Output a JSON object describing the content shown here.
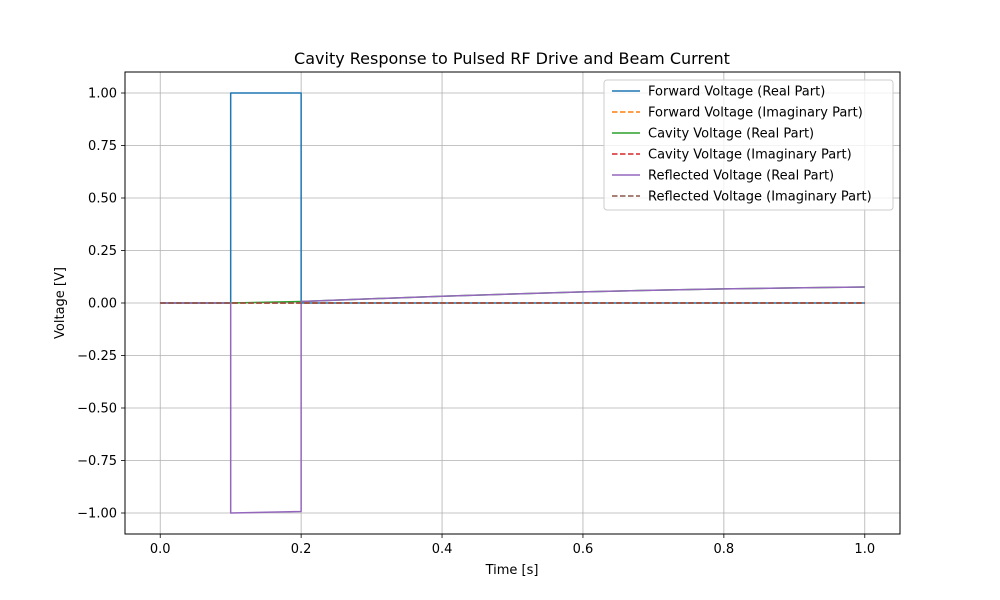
{
  "chart_data": {
    "type": "line",
    "title": "Cavity Response to Pulsed RF Drive and Beam Current",
    "xlabel": "Time [s]",
    "ylabel": "Voltage [V]",
    "xlim": [
      -0.05,
      1.05
    ],
    "ylim": [
      -1.1,
      1.1
    ],
    "xticks": [
      0.0,
      0.2,
      0.4,
      0.6,
      0.8,
      1.0
    ],
    "xtick_labels": [
      "0.0",
      "0.2",
      "0.4",
      "0.6",
      "0.8",
      "1.0"
    ],
    "yticks": [
      1.0,
      0.75,
      0.5,
      0.25,
      0.0,
      -0.25,
      -0.5,
      -0.75,
      -1.0
    ],
    "ytick_labels": [
      "1.00",
      "0.75",
      "0.50",
      "0.25",
      "0.00",
      "−0.25",
      "−0.50",
      "−0.75",
      "−1.00"
    ],
    "grid": true,
    "legend_position": "top-right",
    "series": [
      {
        "name": "Forward Voltage (Real Part)",
        "color": "#1f77b4",
        "dash": "solid",
        "x": [
          0.0,
          0.1,
          0.1,
          0.2,
          0.2,
          1.0
        ],
        "y": [
          0.0,
          0.0,
          1.0,
          1.0,
          0.0,
          0.0
        ]
      },
      {
        "name": "Forward Voltage (Imaginary Part)",
        "color": "#ff7f0e",
        "dash": "dashed",
        "x": [
          0.0,
          1.0
        ],
        "y": [
          0.0,
          0.0
        ]
      },
      {
        "name": "Cavity Voltage (Real Part)",
        "color": "#2ca02c",
        "dash": "solid",
        "x": [
          0.0,
          0.1,
          0.2,
          0.3,
          0.4,
          0.5,
          0.6,
          0.7,
          0.8,
          0.9,
          1.0
        ],
        "y": [
          0.0,
          0.0,
          0.007,
          0.02,
          0.032,
          0.043,
          0.053,
          0.061,
          0.067,
          0.072,
          0.076
        ]
      },
      {
        "name": "Cavity Voltage (Imaginary Part)",
        "color": "#d62728",
        "dash": "dashed",
        "x": [
          0.0,
          1.0
        ],
        "y": [
          0.0,
          0.0
        ]
      },
      {
        "name": "Reflected Voltage (Real Part)",
        "color": "#9467bd",
        "dash": "solid",
        "x": [
          0.0,
          0.1,
          0.1,
          0.2,
          0.2,
          0.3,
          0.4,
          0.5,
          0.6,
          0.7,
          0.8,
          0.9,
          1.0
        ],
        "y": [
          0.0,
          0.0,
          -1.0,
          -0.993,
          0.007,
          0.02,
          0.032,
          0.043,
          0.053,
          0.061,
          0.067,
          0.072,
          0.076
        ]
      },
      {
        "name": "Reflected Voltage (Imaginary Part)",
        "color": "#8c564b",
        "dash": "dashed",
        "x": [
          0.0,
          1.0
        ],
        "y": [
          0.0,
          0.0
        ]
      }
    ]
  }
}
